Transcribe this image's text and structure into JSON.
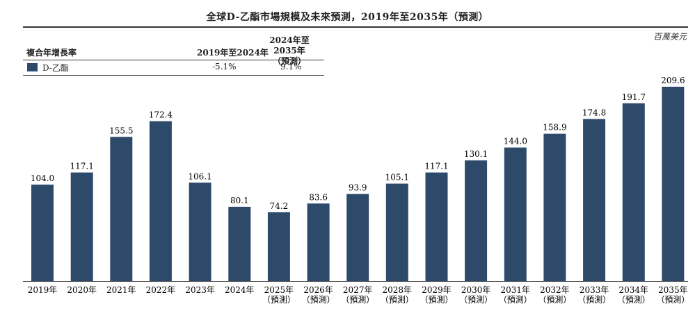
{
  "title": "全球D-乙酯市場規模及未來預測，2019年至2035年（預測）",
  "unit": "百萬美元",
  "cagr_table": {
    "header_label": "複合年增長率",
    "col1": "2019年至2024年",
    "col2_line1": "2024年至2035年",
    "col2_line2": "（預測）",
    "row_label": "D-乙酯",
    "row_v1": "-5.1%",
    "row_v2": "9.1%"
  },
  "colors": {
    "bar": "#2e4a6b"
  },
  "chart_data": {
    "type": "bar",
    "title": "全球D-乙酯市場規模及未來預測，2019年至2035年（預測）",
    "ylabel": "百萬美元",
    "categories": [
      [
        "2019年"
      ],
      [
        "2020年"
      ],
      [
        "2021年"
      ],
      [
        "2022年"
      ],
      [
        "2023年"
      ],
      [
        "2024年"
      ],
      [
        "2025年",
        "（預測）"
      ],
      [
        "2026年",
        "（預測）"
      ],
      [
        "2027年",
        "（預測）"
      ],
      [
        "2028年",
        "（預測）"
      ],
      [
        "2029年",
        "（預測）"
      ],
      [
        "2030年",
        "（預測）"
      ],
      [
        "2031年",
        "（預測）"
      ],
      [
        "2032年",
        "（預測）"
      ],
      [
        "2033年",
        "（預測）"
      ],
      [
        "2034年",
        "（預測）"
      ],
      [
        "2035年",
        "（預測）"
      ]
    ],
    "series": [
      {
        "name": "D-乙酯",
        "values": [
          104.0,
          117.1,
          155.5,
          172.4,
          106.1,
          80.1,
          74.2,
          83.6,
          93.9,
          105.1,
          117.1,
          130.1,
          144.0,
          158.9,
          174.8,
          191.7,
          209.6
        ]
      }
    ],
    "value_labels": [
      "104.0",
      "117.1",
      "155.5",
      "172.4",
      "106.1",
      "80.1",
      "74.2",
      "83.6",
      "93.9",
      "105.1",
      "117.1",
      "130.1",
      "144.0",
      "158.9",
      "174.8",
      "191.7",
      "209.6"
    ],
    "ylim": [
      0,
      209.6
    ],
    "grid": false,
    "legend": "top-left"
  }
}
